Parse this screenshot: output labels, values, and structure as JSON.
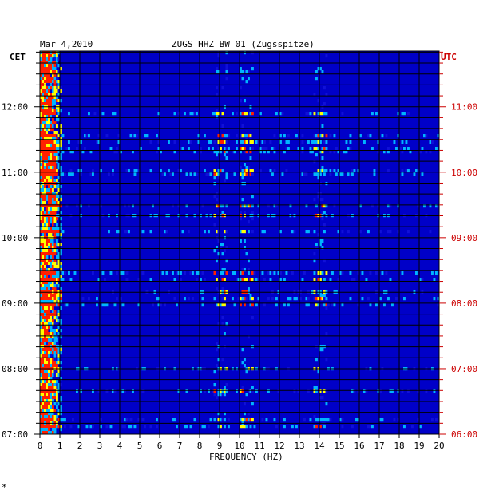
{
  "chart_data": {
    "type": "heatmap",
    "date": "Mar 4,2010",
    "title": "ZUGS HHZ BW 01 (Zugsspitze)",
    "xlabel": "FREQUENCY (HZ)",
    "left_axis_label": "CET",
    "right_axis_label": "UTC",
    "xlim": [
      0,
      20
    ],
    "x_ticks": [
      "0",
      "1",
      "2",
      "3",
      "4",
      "5",
      "6",
      "7",
      "8",
      "9",
      "10",
      "11",
      "12",
      "13",
      "14",
      "15",
      "16",
      "17",
      "18",
      "19",
      "20"
    ],
    "cet_ticks": [
      "07:00",
      "08:00",
      "09:00",
      "10:00",
      "11:00",
      "12:00"
    ],
    "utc_ticks": [
      "06:00",
      "07:00",
      "08:00",
      "09:00",
      "10:00",
      "11:00"
    ],
    "time_range_cet_hours": [
      7.0,
      12.85
    ],
    "colors": {
      "background": "#0000c8",
      "low": "#1010d8",
      "mid": "#00b4ff",
      "high": "#ffff00",
      "peak": "#ff2000",
      "utc_text": "#cc0000"
    },
    "strong_frequency_bands_hz": [
      0.4,
      9.0,
      10.3,
      14.0
    ],
    "footer_mark": "*"
  }
}
